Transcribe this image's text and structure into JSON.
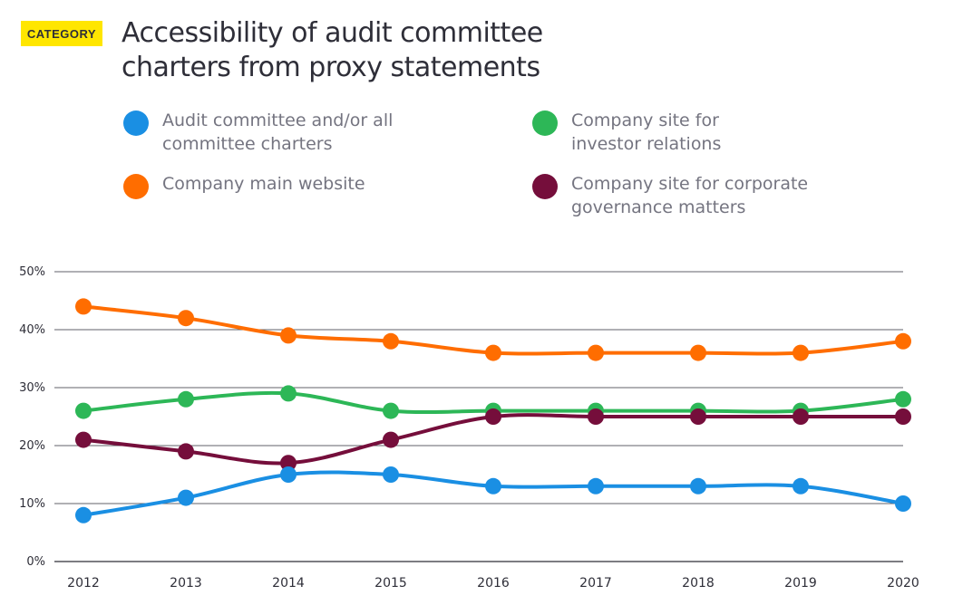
{
  "badge": "CATEGORY",
  "title_line1": "Accessibility of audit committee",
  "title_line2": "charters from proxy statements",
  "colors": {
    "badge": "#ffe600",
    "grid": "#2e2e38",
    "axis_text": "#2e2e38",
    "legend_text": "#747480"
  },
  "legend": [
    {
      "label_line1": "Audit committee and/or all",
      "label_line2": "committee charters",
      "color": "#1a8fe3"
    },
    {
      "label_line1": "Company site for",
      "label_line2": "investor relations",
      "color": "#2db757"
    },
    {
      "label_line1": "Company main website",
      "label_line2": "",
      "color": "#ff6d00"
    },
    {
      "label_line1": "Company site for corporate",
      "label_line2": "governance matters",
      "color": "#750e3b"
    }
  ],
  "chart_data": {
    "type": "line",
    "x": [
      "2012",
      "2013",
      "2014",
      "2015",
      "2016",
      "2017",
      "2018",
      "2019",
      "2020"
    ],
    "ylim": [
      0,
      50
    ],
    "yticks": [
      0,
      10,
      20,
      30,
      40,
      50
    ],
    "ytick_labels": [
      "0%",
      "10%",
      "20%",
      "30%",
      "40%",
      "50%"
    ],
    "grid": true,
    "legend_position": "top",
    "series": [
      {
        "name": "Company main website",
        "color": "#ff6d00",
        "values": [
          44,
          42,
          39,
          38,
          36,
          36,
          36,
          36,
          38
        ]
      },
      {
        "name": "Company site for investor relations",
        "color": "#2db757",
        "values": [
          26,
          28,
          29,
          26,
          26,
          26,
          26,
          26,
          28
        ]
      },
      {
        "name": "Company site for corporate governance matters",
        "color": "#750e3b",
        "values": [
          21,
          19,
          17,
          21,
          25,
          25,
          25,
          25,
          25
        ]
      },
      {
        "name": "Audit committee and/or all committee charters",
        "color": "#1a8fe3",
        "values": [
          8,
          11,
          15,
          15,
          13,
          13,
          13,
          13,
          10
        ]
      }
    ]
  }
}
